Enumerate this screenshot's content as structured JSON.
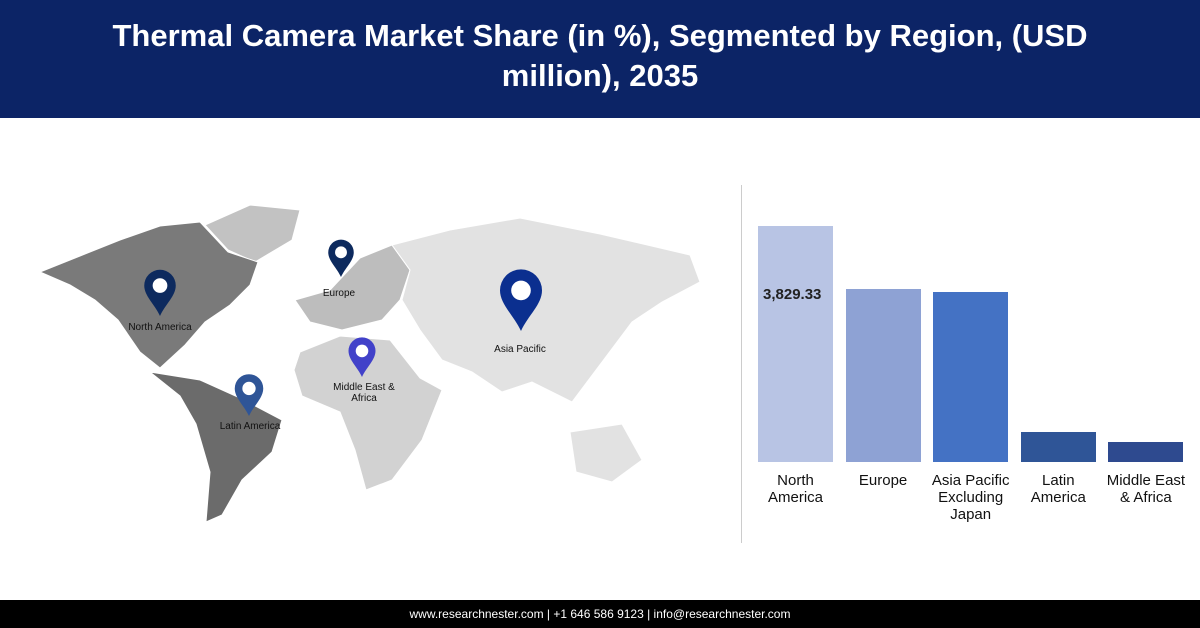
{
  "title": "Thermal Camera Market Share (in %), Segmented by Region, (USD million), 2035",
  "map": {
    "pins": [
      {
        "label": "North America"
      },
      {
        "label": "Europe"
      },
      {
        "label": "Asia Pacific"
      },
      {
        "label": "Middle East & Africa"
      },
      {
        "label": "Latin America"
      }
    ]
  },
  "chart_data": {
    "type": "bar",
    "categories": [
      "North America",
      "Europe",
      "Asia Pacific Excluding Japan",
      "Latin America",
      "Middle East & Africa"
    ],
    "values": [
      3829.33,
      2807,
      2758,
      487,
      325
    ],
    "value_labels": [
      "3,829.33",
      null,
      null,
      null,
      null
    ],
    "colors": [
      "#b8c4e4",
      "#8ea2d4",
      "#4472c4",
      "#2f5597",
      "#2e4a8f"
    ]
  },
  "footer": "www.researchnester.com | +1 646 586 9123 | info@researchnester.com"
}
